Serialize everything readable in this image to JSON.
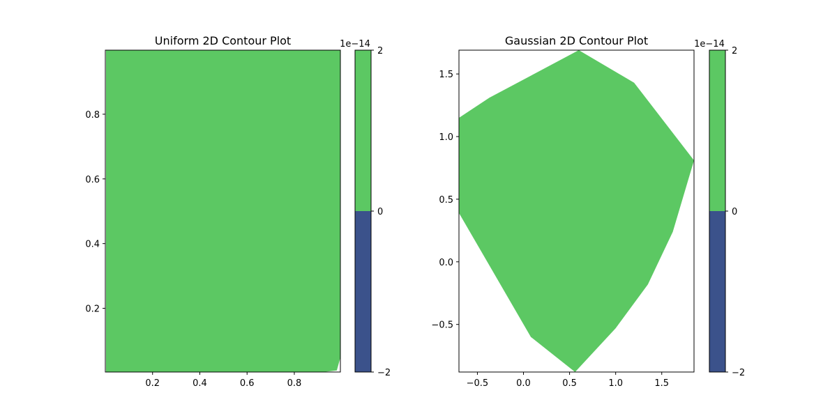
{
  "colors": {
    "fill_high": "#5cc863",
    "fill_low": "#3b528b",
    "frame": "#000000",
    "background": "#ffffff"
  },
  "chart_data": [
    {
      "type": "contour",
      "title": "Uniform 2D Contour Plot",
      "xlim": [
        0.0,
        0.995
      ],
      "ylim": [
        0.003,
        0.998
      ],
      "xticks": [
        0.2,
        0.4,
        0.6,
        0.8
      ],
      "xtick_labels": [
        "0.2",
        "0.4",
        "0.6",
        "0.8"
      ],
      "yticks": [
        0.2,
        0.4,
        0.6,
        0.8
      ],
      "ytick_labels": [
        "0.2",
        "0.4",
        "0.6",
        "0.8"
      ],
      "filled_region": {
        "level_band": [
          0,
          2
        ],
        "color": "#5cc863",
        "boundary": [
          [
            0.003,
            0.998
          ],
          [
            0.995,
            0.998
          ],
          [
            0.995,
            0.048
          ],
          [
            0.98,
            0.008
          ],
          [
            0.92,
            0.003
          ],
          [
            0.003,
            0.003
          ]
        ]
      },
      "colorbar": {
        "levels": [
          -2,
          0,
          2
        ],
        "level_labels": [
          "−2",
          "0",
          "2"
        ],
        "exponent_label": "1e−14",
        "bands": [
          {
            "from": -2,
            "to": 0,
            "color": "#3b528b"
          },
          {
            "from": 0,
            "to": 2,
            "color": "#5cc863"
          }
        ]
      }
    },
    {
      "type": "contour",
      "title": "Gaussian 2D Contour Plot",
      "xlim": [
        -0.7,
        1.85
      ],
      "ylim": [
        -0.88,
        1.69
      ],
      "xticks": [
        -0.5,
        0.0,
        0.5,
        1.0,
        1.5
      ],
      "xtick_labels": [
        "−0.5",
        "0.0",
        "0.5",
        "1.0",
        "1.5"
      ],
      "yticks": [
        -0.5,
        0.0,
        0.5,
        1.0,
        1.5
      ],
      "ytick_labels": [
        "−0.5",
        "0.0",
        "0.5",
        "1.0",
        "1.5"
      ],
      "filled_region": {
        "level_band": [
          0,
          2
        ],
        "color": "#5cc863",
        "boundary": [
          [
            -0.7,
            1.15
          ],
          [
            -0.37,
            1.31
          ],
          [
            0.6,
            1.69
          ],
          [
            1.2,
            1.43
          ],
          [
            1.85,
            0.81
          ],
          [
            1.62,
            0.24
          ],
          [
            1.35,
            -0.18
          ],
          [
            1.0,
            -0.53
          ],
          [
            0.56,
            -0.88
          ],
          [
            0.08,
            -0.6
          ],
          [
            -0.7,
            0.39
          ]
        ]
      },
      "colorbar": {
        "levels": [
          -2,
          0,
          2
        ],
        "level_labels": [
          "−2",
          "0",
          "2"
        ],
        "exponent_label": "1e−14",
        "bands": [
          {
            "from": -2,
            "to": 0,
            "color": "#3b528b"
          },
          {
            "from": 0,
            "to": 2,
            "color": "#5cc863"
          }
        ]
      }
    }
  ]
}
